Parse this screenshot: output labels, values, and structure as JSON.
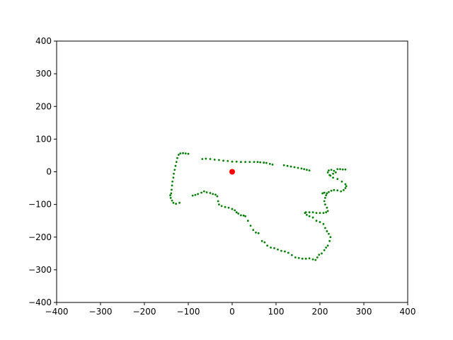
{
  "chart_data": {
    "type": "scatter",
    "title": "",
    "xlabel": "",
    "ylabel": "",
    "xlim": [
      -400,
      400
    ],
    "ylim": [
      -400,
      400
    ],
    "x_ticks": [
      -400,
      -300,
      -200,
      -100,
      0,
      100,
      200,
      300,
      400
    ],
    "y_ticks": [
      -400,
      -300,
      -200,
      -100,
      0,
      100,
      200,
      300,
      400
    ],
    "x_tick_labels": [
      "−400",
      "−300",
      "−200",
      "−100",
      "0",
      "100",
      "200",
      "300",
      "400"
    ],
    "y_tick_labels": [
      "−400",
      "−300",
      "−200",
      "−100",
      "0",
      "100",
      "200",
      "300",
      "400"
    ],
    "grid": false,
    "legend": "none",
    "series": [
      {
        "color": "#008000",
        "marker": "small-point",
        "points": [
          [
            -118,
            56
          ],
          [
            -112,
            57
          ],
          [
            -106,
            56
          ],
          [
            -100,
            55
          ],
          [
            -122,
            52
          ],
          [
            -125,
            42
          ],
          [
            -127,
            30
          ],
          [
            -129,
            18
          ],
          [
            -131,
            6
          ],
          [
            -133,
            -6
          ],
          [
            -134,
            -18
          ],
          [
            -136,
            -30
          ],
          [
            -137,
            -42
          ],
          [
            -138,
            -55
          ],
          [
            -139,
            -66
          ],
          [
            -141,
            -72
          ],
          [
            -140,
            -80
          ],
          [
            -137,
            -88
          ],
          [
            -134,
            -95
          ],
          [
            -128,
            -98
          ],
          [
            -120,
            -95
          ],
          [
            -68,
            39
          ],
          [
            -60,
            40
          ],
          [
            -50,
            39
          ],
          [
            -40,
            37
          ],
          [
            -30,
            36
          ],
          [
            -20,
            34
          ],
          [
            -10,
            33
          ],
          [
            0,
            31
          ],
          [
            10,
            31
          ],
          [
            20,
            30
          ],
          [
            30,
            30
          ],
          [
            40,
            30
          ],
          [
            50,
            30
          ],
          [
            58,
            30
          ],
          [
            64,
            29
          ],
          [
            72,
            28
          ],
          [
            78,
            27
          ],
          [
            86,
            24
          ],
          [
            92,
            22
          ],
          [
            118,
            20
          ],
          [
            126,
            18
          ],
          [
            134,
            16
          ],
          [
            142,
            14
          ],
          [
            150,
            12
          ],
          [
            158,
            10
          ],
          [
            164,
            8
          ],
          [
            170,
            6
          ],
          [
            176,
            4
          ],
          [
            -90,
            -73
          ],
          [
            -84,
            -71
          ],
          [
            -78,
            -68
          ],
          [
            -70,
            -64
          ],
          [
            -64,
            -60
          ],
          [
            -58,
            -63
          ],
          [
            -50,
            -65
          ],
          [
            -44,
            -68
          ],
          [
            -38,
            -70
          ],
          [
            -34,
            -75
          ],
          [
            -32,
            -90
          ],
          [
            -30,
            -100
          ],
          [
            -24,
            -105
          ],
          [
            -16,
            -108
          ],
          [
            -8,
            -110
          ],
          [
            0,
            -114
          ],
          [
            6,
            -118
          ],
          [
            10,
            -124
          ],
          [
            14,
            -128
          ],
          [
            20,
            -133
          ],
          [
            26,
            -134
          ],
          [
            30,
            -136
          ],
          [
            36,
            -150
          ],
          [
            42,
            -165
          ],
          [
            48,
            -178
          ],
          [
            54,
            -186
          ],
          [
            60,
            -188
          ],
          [
            68,
            -212
          ],
          [
            74,
            -216
          ],
          [
            80,
            -226
          ],
          [
            88,
            -232
          ],
          [
            96,
            -234
          ],
          [
            104,
            -238
          ],
          [
            112,
            -242
          ],
          [
            120,
            -244
          ],
          [
            128,
            -248
          ],
          [
            136,
            -255
          ],
          [
            144,
            -262
          ],
          [
            152,
            -264
          ],
          [
            160,
            -266
          ],
          [
            168,
            -266
          ],
          [
            176,
            -265
          ],
          [
            184,
            -268
          ],
          [
            190,
            -270
          ],
          [
            194,
            -262
          ],
          [
            198,
            -254
          ],
          [
            204,
            -250
          ],
          [
            210,
            -240
          ],
          [
            214,
            -232
          ],
          [
            218,
            -226
          ],
          [
            222,
            -212
          ],
          [
            224,
            -200
          ],
          [
            220,
            -190
          ],
          [
            216,
            -182
          ],
          [
            212,
            -172
          ],
          [
            208,
            -160
          ],
          [
            200,
            -154
          ],
          [
            192,
            -150
          ],
          [
            184,
            -140
          ],
          [
            176,
            -136
          ],
          [
            170,
            -132
          ],
          [
            166,
            -126
          ],
          [
            168,
            -124
          ],
          [
            176,
            -124
          ],
          [
            184,
            -124
          ],
          [
            192,
            -126
          ],
          [
            200,
            -126
          ],
          [
            208,
            -126
          ],
          [
            214,
            -124
          ],
          [
            218,
            -120
          ],
          [
            216,
            -110
          ],
          [
            212,
            -100
          ],
          [
            210,
            -90
          ],
          [
            212,
            -80
          ],
          [
            214,
            -72
          ],
          [
            216,
            -66
          ],
          [
            210,
            -64
          ],
          [
            206,
            -66
          ],
          [
            220,
            -62
          ],
          [
            226,
            -58
          ],
          [
            232,
            -56
          ],
          [
            240,
            -57
          ],
          [
            248,
            -60
          ],
          [
            254,
            -56
          ],
          [
            258,
            -50
          ],
          [
            260,
            -44
          ],
          [
            258,
            -38
          ],
          [
            250,
            -30
          ],
          [
            240,
            -22
          ],
          [
            230,
            -18
          ],
          [
            222,
            -10
          ],
          [
            218,
            -2
          ],
          [
            220,
            4
          ],
          [
            226,
            6
          ],
          [
            232,
            3
          ],
          [
            236,
            -2
          ],
          [
            230,
            -6
          ],
          [
            224,
            -12
          ],
          [
            240,
            8
          ],
          [
            246,
            8
          ],
          [
            252,
            7
          ],
          [
            258,
            7
          ]
        ]
      },
      {
        "color": "#ff0000",
        "marker": "dot",
        "points": [
          [
            0,
            0
          ]
        ]
      }
    ]
  }
}
